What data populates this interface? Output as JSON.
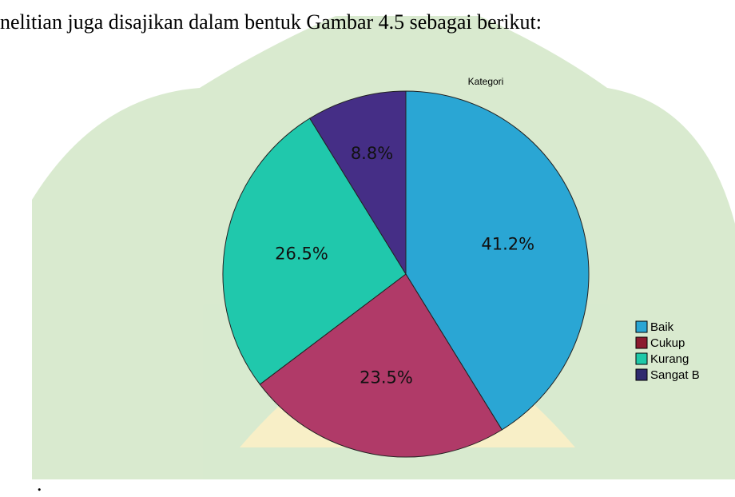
{
  "document": {
    "text": "nelitian juga disajikan dalam bentuk Gambar 4.5 sebagai berikut:",
    "end": "."
  },
  "chart_data": {
    "type": "pie",
    "title": "Kategori",
    "categories": [
      "Baik",
      "Cukup",
      "Kurang",
      "Sangat B"
    ],
    "values": [
      41.2,
      23.5,
      26.5,
      8.8
    ],
    "value_labels": [
      "41.2%",
      "23.5%",
      "26.5%",
      "8.8%"
    ],
    "colors": [
      "#2aa6d4",
      "#b03a68",
      "#20c8ac",
      "#452e86"
    ],
    "legend_colors": [
      "#2aa6d4",
      "#8b1a2e",
      "#1fc9a8",
      "#2e2a6e"
    ],
    "legend": "right"
  }
}
